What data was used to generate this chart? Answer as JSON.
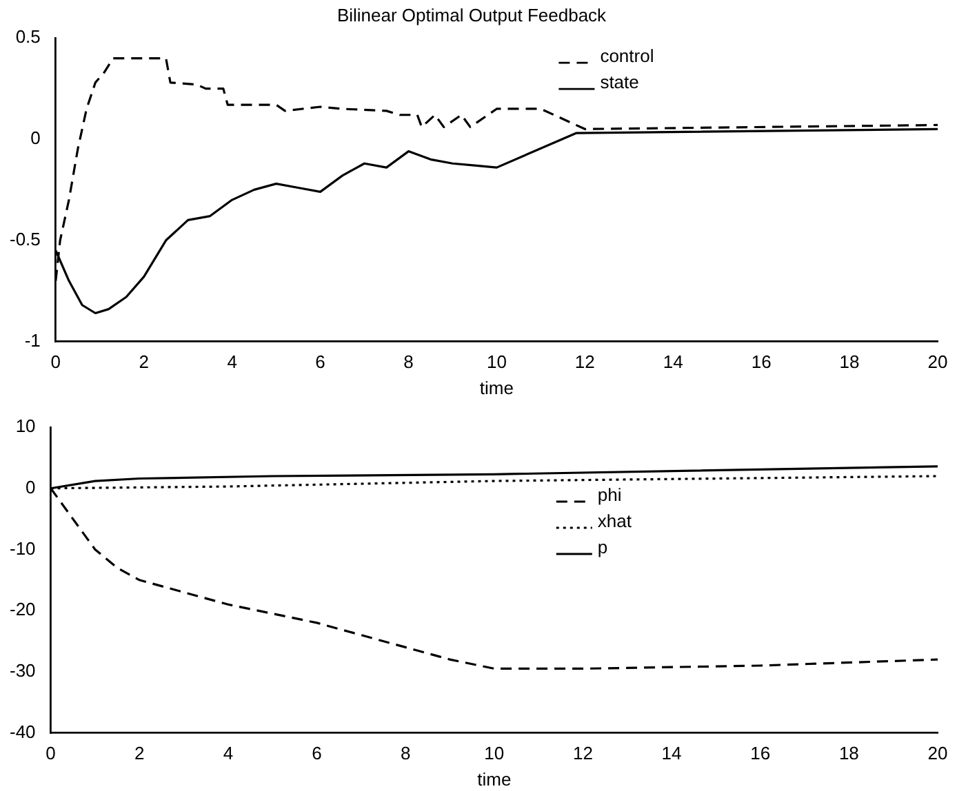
{
  "chart_data": [
    {
      "type": "line",
      "title": "Bilinear Optimal Output Feedback",
      "xlabel": "time",
      "xlim": [
        0,
        20
      ],
      "xticks": [
        0,
        2,
        4,
        6,
        8,
        10,
        12,
        14,
        16,
        18,
        20
      ],
      "ylim": [
        -1,
        0.5
      ],
      "yticks": [
        -1,
        -0.5,
        0,
        0.5
      ],
      "grid": false,
      "legend": "top",
      "series": [
        {
          "name": "control",
          "color": "#000000",
          "line_style": "dashed",
          "x": [
            0,
            0.1,
            0.3,
            0.5,
            0.7,
            0.9,
            1.1,
            1.3,
            2.5,
            2.6,
            3.2,
            3.4,
            3.8,
            3.9,
            5,
            5.2,
            6,
            6.5,
            7.5,
            7.8,
            8.2,
            8.3,
            8.6,
            8.8,
            9.2,
            9.4,
            10,
            11,
            12,
            20
          ],
          "values": [
            -0.7,
            -0.5,
            -0.3,
            -0.05,
            0.15,
            0.28,
            0.33,
            0.4,
            0.4,
            0.28,
            0.27,
            0.25,
            0.25,
            0.17,
            0.17,
            0.14,
            0.16,
            0.15,
            0.14,
            0.12,
            0.12,
            0.06,
            0.12,
            0.06,
            0.12,
            0.06,
            0.15,
            0.15,
            0.05,
            0.07
          ]
        },
        {
          "name": "state",
          "color": "#000000",
          "line_style": "solid",
          "x": [
            0,
            0.3,
            0.6,
            0.9,
            1.2,
            1.6,
            2,
            2.5,
            3,
            3.5,
            4,
            4.5,
            5,
            5.5,
            6,
            6.5,
            7,
            7.5,
            8,
            8.5,
            9,
            9.5,
            10,
            11.8,
            20
          ],
          "values": [
            -0.55,
            -0.7,
            -0.82,
            -0.86,
            -0.84,
            -0.78,
            -0.68,
            -0.5,
            -0.4,
            -0.38,
            -0.3,
            -0.25,
            -0.22,
            -0.24,
            -0.26,
            -0.18,
            -0.12,
            -0.14,
            -0.06,
            -0.1,
            -0.12,
            -0.13,
            -0.14,
            0.03,
            0.05
          ]
        }
      ]
    },
    {
      "type": "line",
      "xlabel": "time",
      "xlim": [
        0,
        20
      ],
      "xticks": [
        0,
        2,
        4,
        6,
        8,
        10,
        12,
        14,
        16,
        18,
        20
      ],
      "ylim": [
        -40,
        10
      ],
      "yticks": [
        -40,
        -30,
        -20,
        -10,
        0,
        10
      ],
      "grid": false,
      "legend": "top",
      "series": [
        {
          "name": "phi",
          "color": "#000000",
          "line_style": "dashed",
          "x": [
            0,
            0.5,
            1,
            1.5,
            2,
            4,
            6,
            8,
            9,
            10,
            12,
            16,
            20
          ],
          "values": [
            0,
            -5,
            -10,
            -13,
            -15,
            -19,
            -22,
            -26,
            -28,
            -29.5,
            -29.5,
            -29,
            -28
          ]
        },
        {
          "name": "xhat",
          "color": "#000000",
          "line_style": "dotted",
          "x": [
            0,
            4,
            10,
            20
          ],
          "values": [
            0,
            0.3,
            1.2,
            2
          ]
        },
        {
          "name": "p",
          "color": "#000000",
          "line_style": "solid",
          "x": [
            0,
            1,
            2,
            5,
            10,
            20
          ],
          "values": [
            0,
            1.2,
            1.6,
            2,
            2.3,
            3.6
          ]
        }
      ]
    }
  ]
}
